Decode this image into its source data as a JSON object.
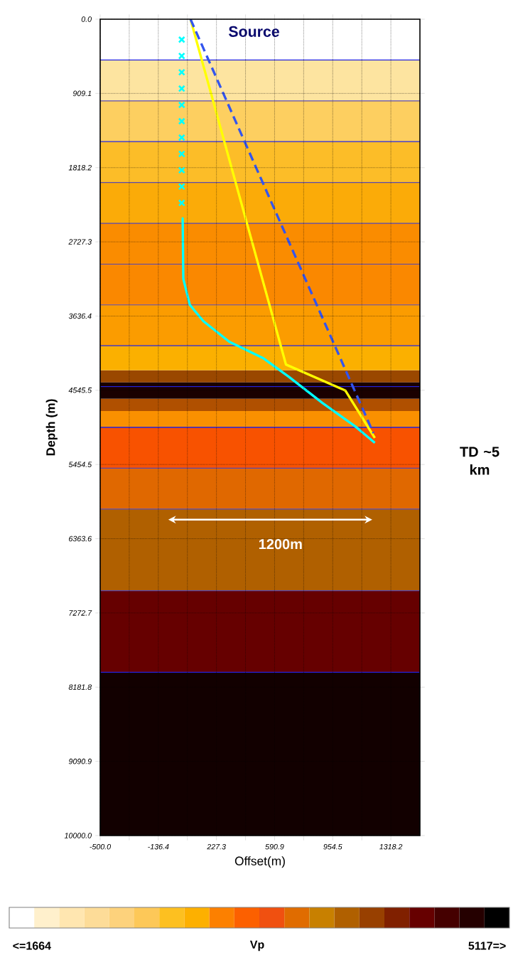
{
  "chart_data": [
    {
      "type": "line",
      "xlabel": "Offset(m)",
      "ylabel": "Depth (m)",
      "xlim": [
        -500,
        1500
      ],
      "ylim": [
        10000,
        0
      ],
      "xticks": [
        {
          "value": -500,
          "label": "-500.0"
        },
        {
          "value": -318.2,
          "label": null
        },
        -136.4,
        {
          "value": 45.5,
          "label": null
        },
        227.3,
        {
          "value": 409.1,
          "label": null
        },
        590.9,
        {
          "value": 772.7,
          "label": null
        },
        954.5,
        {
          "value": 1136.4,
          "label": null
        },
        1318.2
      ],
      "yticks": [
        {
          "value": 0,
          "label": "0.0"
        },
        909.1,
        1818.2,
        2727.3,
        3636.4,
        4545.5,
        5454.5,
        6363.6,
        7272.7,
        8181.8,
        9090.9,
        {
          "value": 10000,
          "label": "10000.0"
        }
      ],
      "grid": true,
      "series": [
        {
          "type": "scatter",
          "marker": "cross",
          "color": "#00ffff",
          "x": [
            10,
            10,
            10,
            10,
            10,
            10,
            10,
            10,
            10,
            10,
            10
          ],
          "values": [
            250,
            450,
            650,
            850,
            1050,
            1250,
            1450,
            1650,
            1850,
            2050,
            2250
          ]
        },
        {
          "type": "line",
          "color": "#00ffff",
          "x": [
            10,
            16,
            20,
            61,
            146,
            307,
            518,
            680,
            890,
            1097,
            1218
          ],
          "values": [
            2440,
            2440,
            3180,
            3500,
            3700,
            3950,
            4150,
            4380,
            4700,
            4990,
            5190
          ]
        },
        {
          "type": "line",
          "color": "#ffff00",
          "x": [
            65,
            662,
            1034,
            1218
          ],
          "values": [
            0,
            4230,
            4550,
            5130
          ]
        },
        {
          "type": "line",
          "color": "#3355ee",
          "line_style": "dashed",
          "x": [
            65,
            1209
          ],
          "values": [
            0,
            5070
          ]
        }
      ],
      "bands": [
        {
          "axis": "y",
          "from": 500,
          "to": 1000,
          "color": "#fde4a0"
        },
        {
          "axis": "y",
          "from": 1000,
          "to": 1500,
          "color": "#fdcf60"
        },
        {
          "axis": "y",
          "from": 1500,
          "to": 2000,
          "color": "#fcbd28"
        },
        {
          "axis": "y",
          "from": 2000,
          "to": 2500,
          "color": "#fbab08"
        },
        {
          "axis": "y",
          "from": 2500,
          "to": 3000,
          "color": "#fa8c00"
        },
        {
          "axis": "y",
          "from": 3000,
          "to": 3500,
          "color": "#fa8800"
        },
        {
          "axis": "y",
          "from": 3500,
          "to": 4000,
          "color": "#fb9c00"
        },
        {
          "axis": "y",
          "from": 4000,
          "to": 4300,
          "color": "#fbb000"
        },
        {
          "axis": "y",
          "from": 4300,
          "to": 4450,
          "color": "#9a4800"
        },
        {
          "axis": "y",
          "from": 4450,
          "to": 4650,
          "color": "#1a0000"
        },
        {
          "axis": "y",
          "from": 4650,
          "to": 4800,
          "color": "#b05000"
        },
        {
          "axis": "y",
          "from": 4800,
          "to": 5000,
          "color": "#fa9000"
        },
        {
          "axis": "y",
          "from": 5000,
          "to": 5500,
          "color": "#f85200"
        },
        {
          "axis": "y",
          "from": 5500,
          "to": 6000,
          "color": "#e06800"
        },
        {
          "axis": "y",
          "from": 6000,
          "to": 7000,
          "color": "#b06000"
        },
        {
          "axis": "y",
          "from": 7000,
          "to": 8000,
          "color": "#660000"
        },
        {
          "axis": "y",
          "from": 8000,
          "to": 10000,
          "color": "#120000"
        }
      ],
      "ref_lines": [
        {
          "axis": "y",
          "value": 500,
          "color": "#2222dd"
        },
        {
          "axis": "y",
          "value": 1000,
          "color": "#5a4ab0"
        },
        {
          "axis": "y",
          "value": 1500,
          "color": "#2222dd"
        },
        {
          "axis": "y",
          "value": 2000,
          "color": "#5a4ab0"
        },
        {
          "axis": "y",
          "value": 2500,
          "color": "#5a4ab0"
        },
        {
          "axis": "y",
          "value": 3000,
          "color": "#5a4ab0"
        },
        {
          "axis": "y",
          "value": 3500,
          "color": "#5a4ab0"
        },
        {
          "axis": "y",
          "value": 4000,
          "color": "#2222dd"
        },
        {
          "axis": "y",
          "value": 4500,
          "color": "#2222dd"
        },
        {
          "axis": "y",
          "value": 5000,
          "color": "#2222dd"
        },
        {
          "axis": "y",
          "value": 5500,
          "color": "#5a4ab0"
        },
        {
          "axis": "y",
          "value": 6000,
          "color": "#5a4ab0"
        },
        {
          "axis": "y",
          "value": 7000,
          "color": "#5a4ab0"
        },
        {
          "axis": "y",
          "value": 8000,
          "color": "#2222dd"
        }
      ],
      "annotations": [
        {
          "text": "Source",
          "x": 65,
          "y": 0
        },
        "1200m",
        "TD ~5 km"
      ]
    },
    {
      "type": "other",
      "clabel": "Vp",
      "annotations": [
        "<=1664",
        "5117=>"
      ],
      "colors": [
        "#ffffff",
        "#fff0cc",
        "#ffe6b0",
        "#fddc98",
        "#fdd27c",
        "#fdc858",
        "#fdc020",
        "#fdb000",
        "#fc8000",
        "#fc6000",
        "#f05010",
        "#e06c00",
        "#c88000",
        "#b06000",
        "#984000",
        "#802000",
        "#660000",
        "#450000",
        "#250000",
        "#000000"
      ]
    }
  ]
}
